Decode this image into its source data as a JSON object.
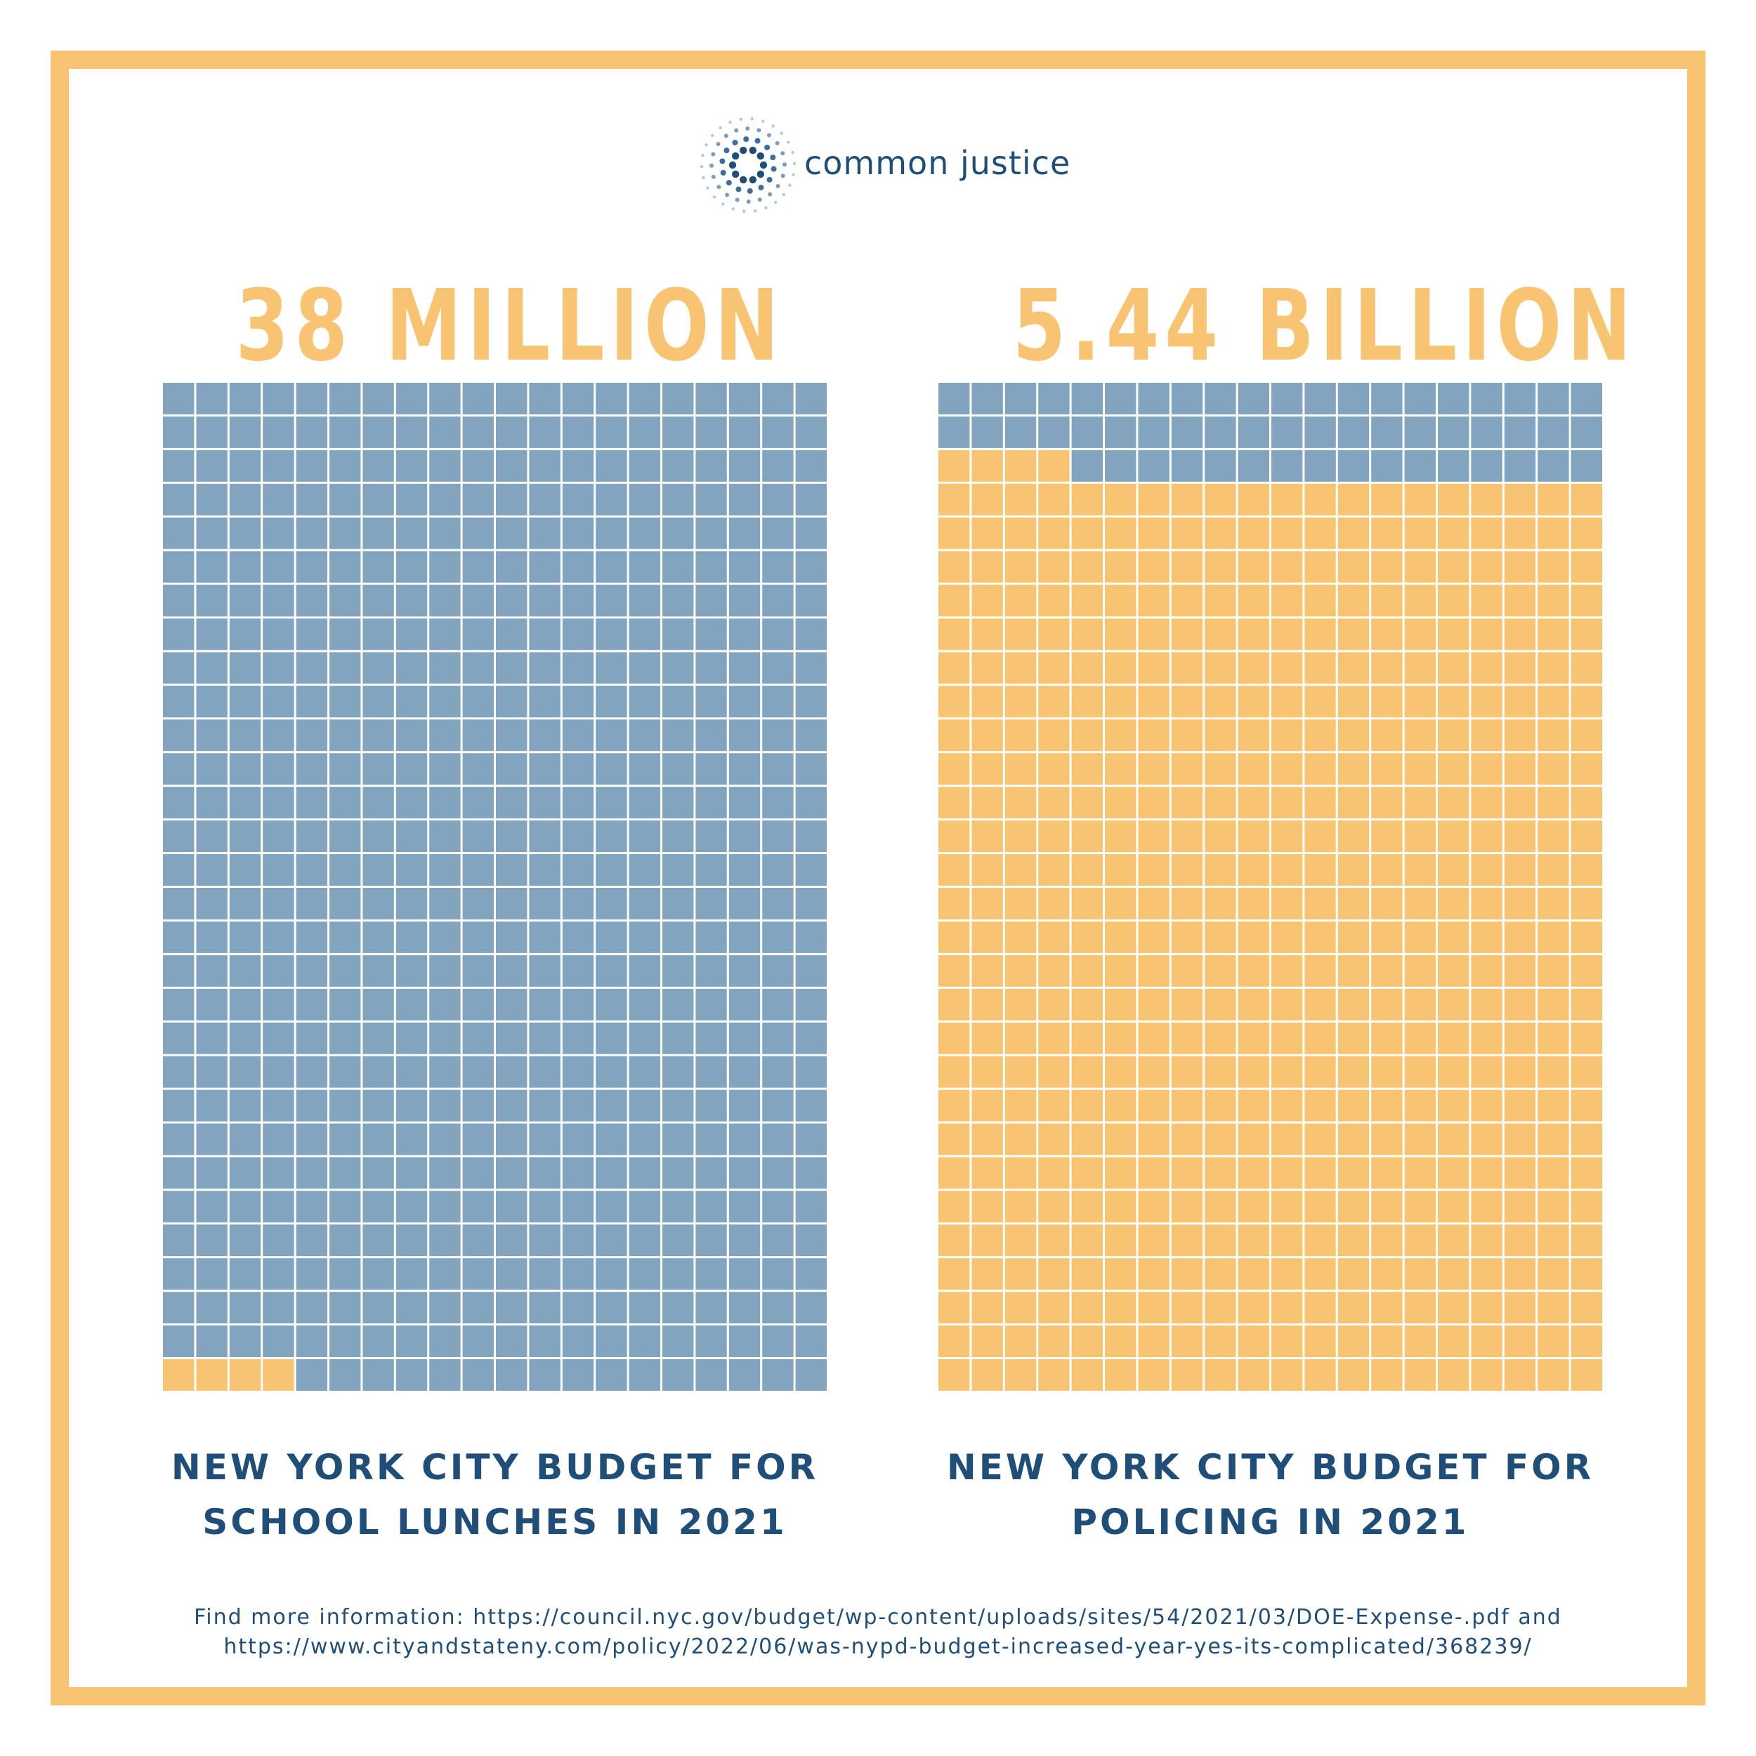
{
  "brand": {
    "name": "common justice",
    "logo_icon": "sunburst-dots-icon",
    "colors": {
      "dark_blue": "#1f4e79",
      "light_blue": "#82a4be",
      "gold": "#f8c471"
    }
  },
  "chart_data": [
    {
      "type": "waffle",
      "title": "38 MILLION",
      "caption": [
        "NEW YORK CITY BUDGET FOR",
        "SCHOOL LUNCHES IN 2021"
      ],
      "columns": 20,
      "rows": 30,
      "total_cells": 600,
      "highlighted_cells": 4,
      "highlight_color": "#f8c471",
      "base_color": "#82a4be",
      "fill_from": "bottom-left"
    },
    {
      "type": "waffle",
      "title": "5.44 BILLION",
      "caption": [
        "NEW YORK CITY BUDGET FOR",
        "POLICING IN 2021"
      ],
      "columns": 20,
      "rows": 30,
      "total_cells": 600,
      "highlighted_cells": 544,
      "highlight_color": "#f8c471",
      "base_color": "#82a4be",
      "fill_from": "bottom-left"
    }
  ],
  "source": {
    "line1": "Find more information: https://council.nyc.gov/budget/wp-content/uploads/sites/54/2021/03/DOE-Expense-.pdf and",
    "line2": "https://www.cityandstateny.com/policy/2022/06/was-nypd-budget-increased-year-yes-its-complicated/368239/"
  }
}
